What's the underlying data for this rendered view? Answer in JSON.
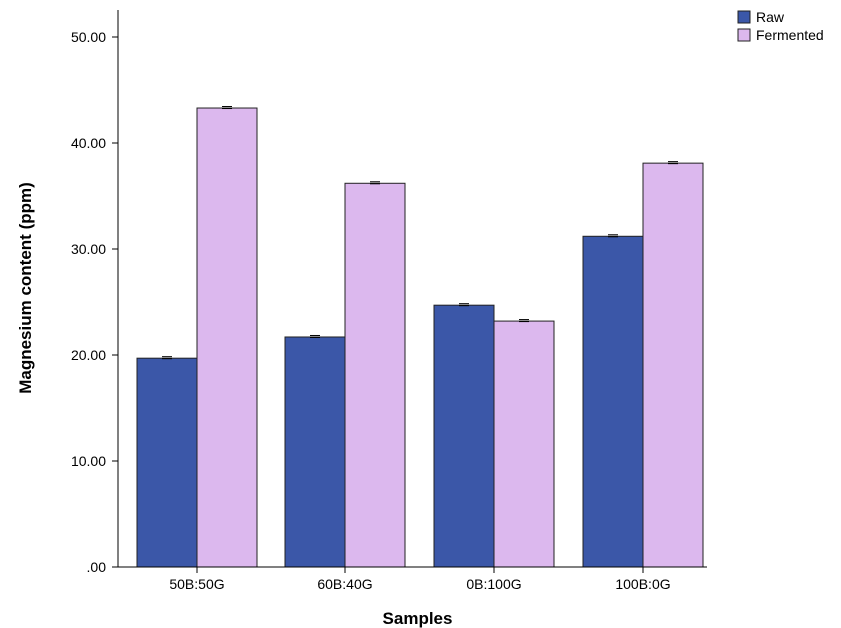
{
  "chart_data": {
    "type": "bar",
    "xlabel": "Samples",
    "ylabel": "Magnesium content (ppm)",
    "ylim": [
      0,
      50
    ],
    "yticks": [
      ".00",
      "10.00",
      "20.00",
      "30.00",
      "40.00",
      "50.00"
    ],
    "ytick_values": [
      0,
      10,
      20,
      30,
      40,
      50
    ],
    "categories": [
      "50B:50G",
      "60B:40G",
      "0B:100G",
      "100B:0G"
    ],
    "series": [
      {
        "name": "Raw",
        "color": "#3b57a8",
        "values": [
          19.7,
          21.7,
          24.7,
          31.2
        ]
      },
      {
        "name": "Fermented",
        "color": "#dcb8ee",
        "values": [
          43.3,
          36.2,
          23.2,
          38.1
        ]
      }
    ],
    "legend_position": "top-right",
    "grid": false,
    "error_bars": true
  }
}
